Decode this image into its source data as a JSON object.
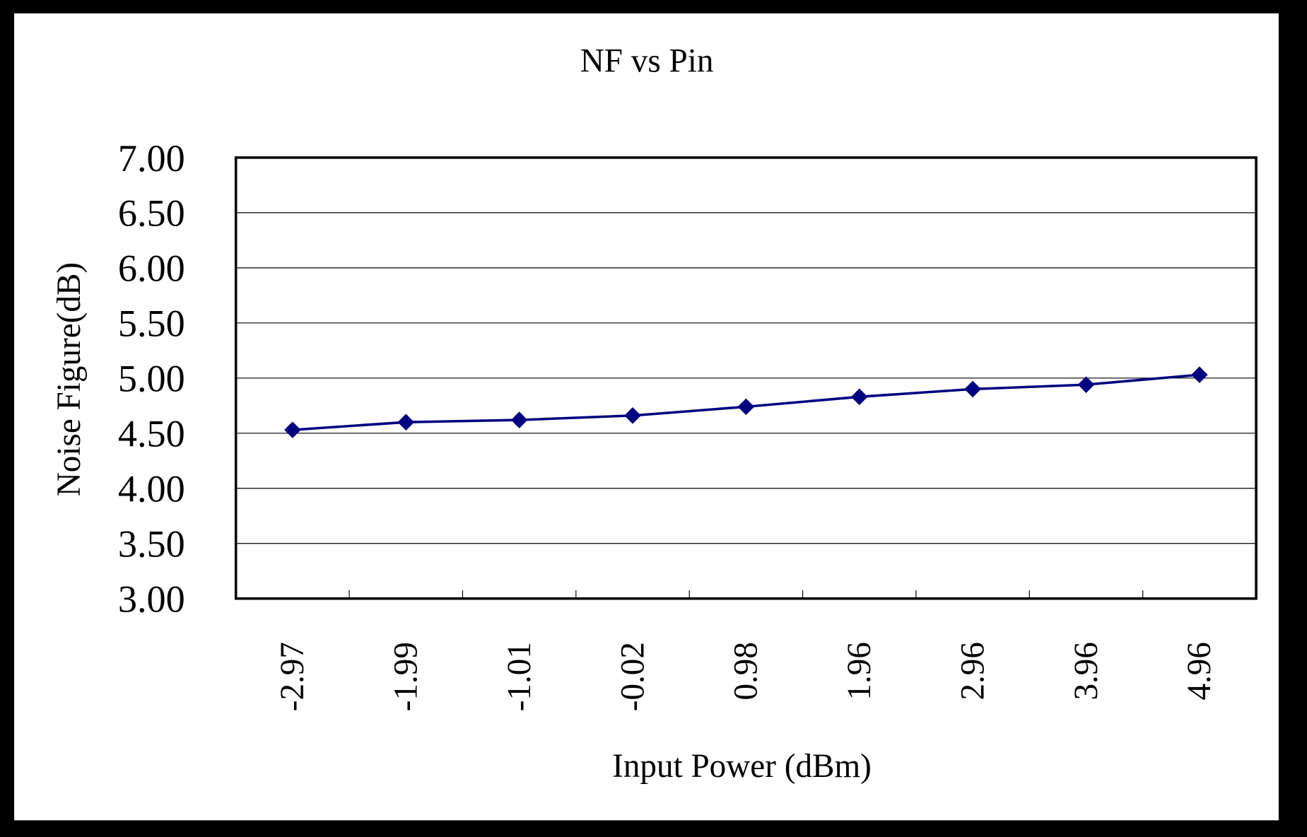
{
  "chart_data": {
    "type": "line",
    "title": "NF vs Pin",
    "x_label": "Input Power (dBm)",
    "y_label": "Noise Figure(dB)",
    "categories": [
      "-2.97",
      "-1.99",
      "-1.01",
      "-0.02",
      "0.98",
      "1.96",
      "2.96",
      "3.96",
      "4.96"
    ],
    "series": [
      {
        "name": "NF",
        "color": "#000080",
        "values": [
          4.53,
          4.6,
          4.62,
          4.66,
          4.74,
          4.83,
          4.9,
          4.94,
          5.03
        ]
      }
    ],
    "ylim": [
      3,
      7
    ],
    "yticks": [
      {
        "value": 3,
        "label": "3.00"
      },
      {
        "value": 3.5,
        "label": "3.50"
      },
      {
        "value": 4,
        "label": "4.00"
      },
      {
        "value": 4.5,
        "label": "4.50"
      },
      {
        "value": 5,
        "label": "5.00"
      },
      {
        "value": 5.5,
        "label": "5.50"
      },
      {
        "value": 6,
        "label": "6.00"
      },
      {
        "value": 6.5,
        "label": "6.50"
      },
      {
        "value": 7,
        "label": "7.00"
      }
    ],
    "grid": true
  }
}
